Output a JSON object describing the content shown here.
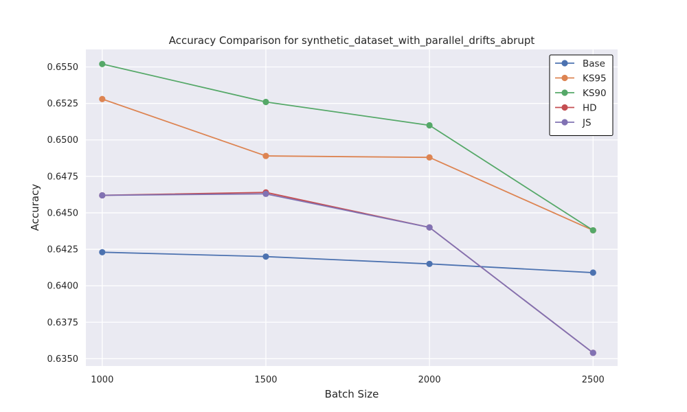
{
  "chart_data": {
    "type": "line",
    "title": "Accuracy Comparison for synthetic_dataset_with_parallel_drifts_abrupt",
    "xlabel": "Batch Size",
    "ylabel": "Accuracy",
    "x": [
      1000,
      1500,
      2000,
      2500
    ],
    "x_tick_labels": [
      "1000",
      "1500",
      "2000",
      "2500"
    ],
    "xlim": [
      950,
      2575
    ],
    "ylim": [
      0.6345,
      0.6562
    ],
    "y_ticks": [
      0.635,
      0.6375,
      0.64,
      0.6425,
      0.645,
      0.6475,
      0.65,
      0.6525,
      0.655
    ],
    "y_tick_labels": [
      "0.6350",
      "0.6375",
      "0.6400",
      "0.6425",
      "0.6450",
      "0.6475",
      "0.6500",
      "0.6525",
      "0.6550"
    ],
    "grid": true,
    "legend_position": "top-right",
    "series": [
      {
        "name": "Base",
        "color": "#4c72b0",
        "values": [
          0.6423,
          0.642,
          0.6415,
          0.6409
        ]
      },
      {
        "name": "KS95",
        "color": "#dd8452",
        "values": [
          0.6528,
          0.6489,
          0.6488,
          0.6438
        ]
      },
      {
        "name": "KS90",
        "color": "#55a868",
        "values": [
          0.6552,
          0.6526,
          0.651,
          0.6438
        ]
      },
      {
        "name": "HD",
        "color": "#c44e52",
        "values": [
          0.6462,
          0.6464,
          0.644,
          0.6354
        ]
      },
      {
        "name": "JS",
        "color": "#8172b3",
        "values": [
          0.6462,
          0.6463,
          0.644,
          0.6354
        ]
      }
    ]
  }
}
